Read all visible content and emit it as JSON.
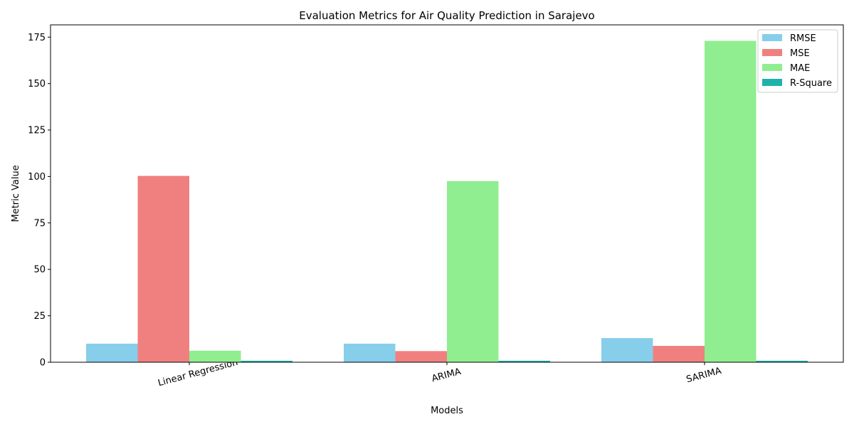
{
  "chart_data": {
    "type": "bar",
    "title": "Evaluation Metrics for Air Quality Prediction in Sarajevo",
    "xlabel": "Models",
    "ylabel": "Metric Value",
    "categories": [
      "Linear Regression",
      "ARIMA",
      "SARIMA"
    ],
    "ylim": [
      0,
      181.6
    ],
    "yticks": [
      0,
      25,
      50,
      75,
      100,
      125,
      150,
      175
    ],
    "ytick_labels": [
      "0",
      "25",
      "50",
      "75",
      "100",
      "125",
      "150",
      "175"
    ],
    "grid": false,
    "legend_position": "top-right",
    "series": [
      {
        "name": "RMSE",
        "color": "#87CEEB",
        "values": [
          10.0,
          10.0,
          13.0
        ]
      },
      {
        "name": "MSE",
        "color": "#F08080",
        "values": [
          100.3,
          6.0,
          8.8
        ]
      },
      {
        "name": "MAE",
        "color": "#90EE90",
        "values": [
          6.2,
          97.5,
          173.0
        ]
      },
      {
        "name": "R-Square",
        "color": "#20B2AA",
        "values": [
          0.8,
          0.8,
          0.8
        ]
      }
    ]
  }
}
